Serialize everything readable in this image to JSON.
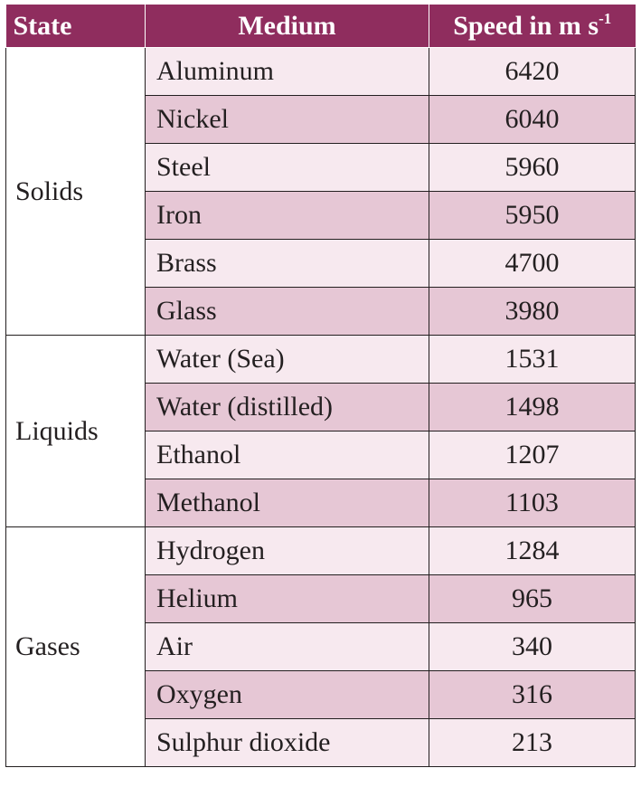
{
  "table": {
    "headers": {
      "state": "State",
      "medium": "Medium",
      "speed": "Speed in m s",
      "speed_unit_exponent": "-1"
    },
    "groups": [
      {
        "state": "Solids",
        "rows": [
          {
            "medium": "Aluminum",
            "speed": "6420"
          },
          {
            "medium": "Nickel",
            "speed": "6040"
          },
          {
            "medium": "Steel",
            "speed": "5960"
          },
          {
            "medium": "Iron",
            "speed": "5950"
          },
          {
            "medium": "Brass",
            "speed": "4700"
          },
          {
            "medium": "Glass",
            "speed": "3980"
          }
        ]
      },
      {
        "state": "Liquids",
        "rows": [
          {
            "medium": "Water (Sea)",
            "speed": "1531"
          },
          {
            "medium": "Water (distilled)",
            "speed": "1498"
          },
          {
            "medium": "Ethanol",
            "speed": "1207"
          },
          {
            "medium": "Methanol",
            "speed": "1103"
          }
        ]
      },
      {
        "state": "Gases",
        "rows": [
          {
            "medium": "Hydrogen",
            "speed": "1284"
          },
          {
            "medium": "Helium",
            "speed": "965"
          },
          {
            "medium": "Air",
            "speed": "340"
          },
          {
            "medium": "Oxygen",
            "speed": "316"
          },
          {
            "medium": "Sulphur dioxide",
            "speed": "213"
          }
        ]
      }
    ],
    "colors": {
      "header_bg": "#8f2d5e",
      "row_light": "#f7e9ef",
      "row_dark": "#e6c7d5"
    }
  }
}
